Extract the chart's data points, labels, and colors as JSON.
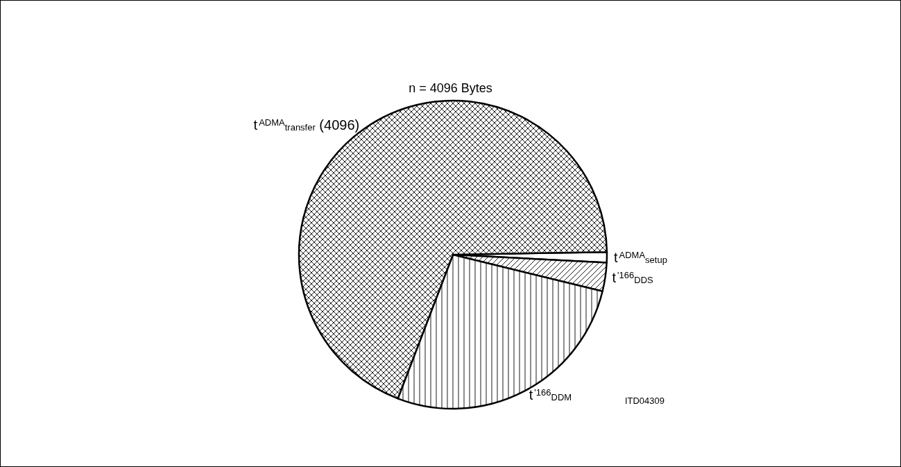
{
  "chart_data": {
    "type": "pie",
    "title": "n = 4096 Bytes",
    "categories": [
      "t$^{ADMA}$$_{setup}$",
      "t$^{'166}$$_{DDS}$",
      "t$^{'166}$$_{DDM}$",
      "t$^{ADMA}$$_{transfer}$ (4096)"
    ],
    "values": [
      1.1,
      3.0,
      27.0,
      68.9
    ],
    "colors": [
      "#ffffff",
      "#000000",
      "#000000",
      "#000000"
    ],
    "annotations": [
      "ITD04309"
    ],
    "legend": false
  }
}
